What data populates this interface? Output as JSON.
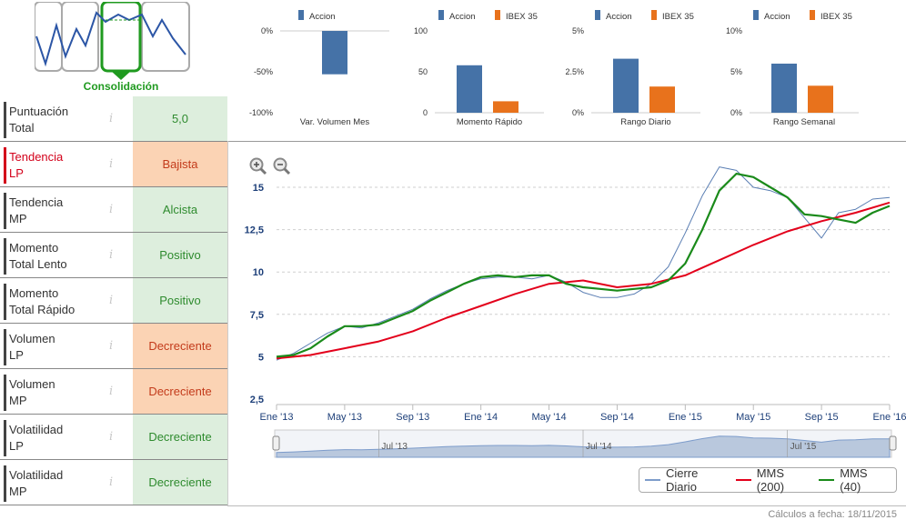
{
  "logo": {
    "title": "Consolidación",
    "icon": "consolidation-chart-icon"
  },
  "indicators": [
    {
      "label": "Puntuación\nTotal",
      "value": "5,0",
      "status": "pos",
      "label_color": "default"
    },
    {
      "label": "Tendencia\nLP",
      "value": "Bajista",
      "status": "neg",
      "label_color": "red"
    },
    {
      "label": "Tendencia\nMP",
      "value": "Alcista",
      "status": "pos",
      "label_color": "default"
    },
    {
      "label": "Momento\nTotal Lento",
      "value": "Positivo",
      "status": "pos",
      "label_color": "default"
    },
    {
      "label": "Momento\nTotal Rápido",
      "value": "Positivo",
      "status": "pos",
      "label_color": "default"
    },
    {
      "label": "Volumen\nLP",
      "value": "Decreciente",
      "status": "neg",
      "label_color": "default"
    },
    {
      "label": "Volumen\nMP",
      "value": "Decreciente",
      "status": "neg",
      "label_color": "default"
    },
    {
      "label": "Volatilidad\nLP",
      "value": "Decreciente",
      "status": "pos",
      "label_color": "default"
    },
    {
      "label": "Volatilidad\nMP",
      "value": "Decreciente",
      "status": "pos",
      "label_color": "default"
    }
  ],
  "info_glyph": "i",
  "colors": {
    "accion": "#4572a7",
    "ibex": "#e8721c",
    "green": "#1a8a1a",
    "red": "#e3001b",
    "close": "#5a7eb3"
  },
  "chart_data": [
    {
      "type": "bar",
      "title": "Var. Volumen Mes",
      "series": [
        {
          "name": "Accion",
          "values": [
            -53
          ]
        }
      ],
      "yticks": [
        "0%",
        "-50%",
        "-100%"
      ],
      "ylim": [
        -100,
        0
      ]
    },
    {
      "type": "bar",
      "title": "Momento Rápido",
      "series": [
        {
          "name": "Accion",
          "values": [
            58
          ]
        },
        {
          "name": "IBEX 35",
          "values": [
            14
          ]
        }
      ],
      "yticks": [
        "100",
        "50",
        "0"
      ],
      "ylim": [
        0,
        100
      ]
    },
    {
      "type": "bar",
      "title": "Rango Diario",
      "series": [
        {
          "name": "Accion",
          "values": [
            3.3
          ]
        },
        {
          "name": "IBEX 35",
          "values": [
            1.6
          ]
        }
      ],
      "yticks": [
        "5%",
        "2.5%",
        "0%"
      ],
      "ylim": [
        0,
        5
      ]
    },
    {
      "type": "bar",
      "title": "Rango Semanal",
      "series": [
        {
          "name": "Accion",
          "values": [
            6.0
          ]
        },
        {
          "name": "IBEX 35",
          "values": [
            3.3
          ]
        }
      ],
      "yticks": [
        "10%",
        "5%",
        "0%"
      ],
      "ylim": [
        0,
        10
      ]
    },
    {
      "type": "line",
      "title": "",
      "x_tick_labels": [
        "Ene '13",
        "May '13",
        "Sep '13",
        "Ene '14",
        "May '14",
        "Sep '14",
        "Ene '15",
        "May '15",
        "Sep '15",
        "Ene '16"
      ],
      "navigator_labels": [
        "Jul '13",
        "Jul '14",
        "Jul '15"
      ],
      "yticks": [
        "15",
        "12,5",
        "10",
        "7,5",
        "5",
        "2,5"
      ],
      "ylim": [
        2.5,
        15
      ],
      "x_months_range": [
        0,
        36
      ],
      "series": [
        {
          "name": "Cierre Diario",
          "x": [
            0,
            1,
            2,
            3,
            4,
            5,
            6,
            7,
            8,
            9,
            10,
            11,
            12,
            13,
            14,
            15,
            16,
            17,
            18,
            19,
            20,
            21,
            22,
            23,
            24,
            25,
            26,
            27,
            28,
            29,
            30,
            31,
            32,
            33,
            34,
            35,
            36
          ],
          "values": [
            4.8,
            5.2,
            5.8,
            6.4,
            6.8,
            6.7,
            7.0,
            7.4,
            7.8,
            8.4,
            8.9,
            9.3,
            9.6,
            9.7,
            9.7,
            9.6,
            9.8,
            9.4,
            8.8,
            8.5,
            8.5,
            8.7,
            9.3,
            10.3,
            12.3,
            14.5,
            16.2,
            16.0,
            15.0,
            14.8,
            14.4,
            13.2,
            12.0,
            13.5,
            13.7,
            14.3,
            14.4
          ]
        },
        {
          "name": "MMS (200)",
          "x": [
            0,
            2,
            4,
            6,
            8,
            10,
            12,
            14,
            16,
            18,
            20,
            22,
            24,
            26,
            28,
            30,
            32,
            34,
            36
          ],
          "values": [
            4.9,
            5.1,
            5.5,
            5.9,
            6.5,
            7.3,
            8.0,
            8.7,
            9.3,
            9.5,
            9.1,
            9.3,
            9.8,
            10.7,
            11.6,
            12.4,
            13.0,
            13.5,
            14.1
          ]
        },
        {
          "name": "MMS (40)",
          "x": [
            0,
            1,
            2,
            3,
            4,
            5,
            6,
            7,
            8,
            9,
            10,
            11,
            12,
            13,
            14,
            15,
            16,
            17,
            18,
            19,
            20,
            21,
            22,
            23,
            24,
            25,
            26,
            27,
            28,
            29,
            30,
            31,
            32,
            33,
            34,
            35,
            36
          ],
          "values": [
            5.0,
            5.1,
            5.5,
            6.2,
            6.8,
            6.8,
            6.9,
            7.3,
            7.7,
            8.3,
            8.8,
            9.3,
            9.7,
            9.8,
            9.7,
            9.8,
            9.8,
            9.3,
            9.1,
            9.0,
            8.9,
            9.0,
            9.1,
            9.5,
            10.5,
            12.5,
            14.8,
            15.8,
            15.6,
            15.0,
            14.4,
            13.4,
            13.3,
            13.1,
            12.9,
            13.5,
            13.9
          ]
        }
      ],
      "legend_position": "bottom-right"
    }
  ],
  "zoom": {
    "in_icon": "zoom-in-icon",
    "out_icon": "zoom-out-icon"
  },
  "footer": {
    "calc_date": "Cálculos a fecha: 18/11/2015"
  }
}
